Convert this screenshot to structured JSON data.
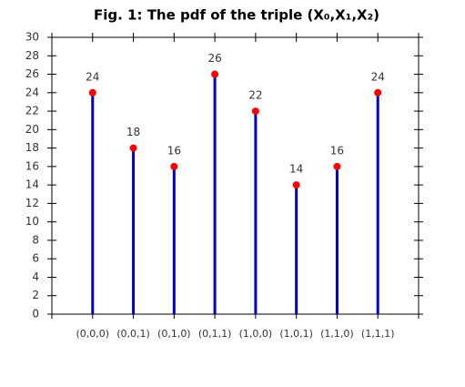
{
  "chart_data": {
    "type": "stem",
    "title": "Fig. 1: The pdf of the triple (X₀,X₁,X₂)",
    "categories": [
      "(0,0,0)",
      "(0,0,1)",
      "(0,1,0)",
      "(0,1,1)",
      "(1,0,0)",
      "(1,0,1)",
      "(1,1,0)",
      "(1,1,1)"
    ],
    "values": [
      24,
      18,
      16,
      26,
      22,
      14,
      16,
      24
    ],
    "color": "#0000cc",
    "marker_color": "#ff0000",
    "ylim": [
      0,
      30
    ],
    "yticks": [
      0,
      2,
      4,
      6,
      8,
      10,
      12,
      14,
      16,
      18,
      20,
      22,
      24,
      26,
      28,
      30
    ],
    "data_labels": true
  }
}
